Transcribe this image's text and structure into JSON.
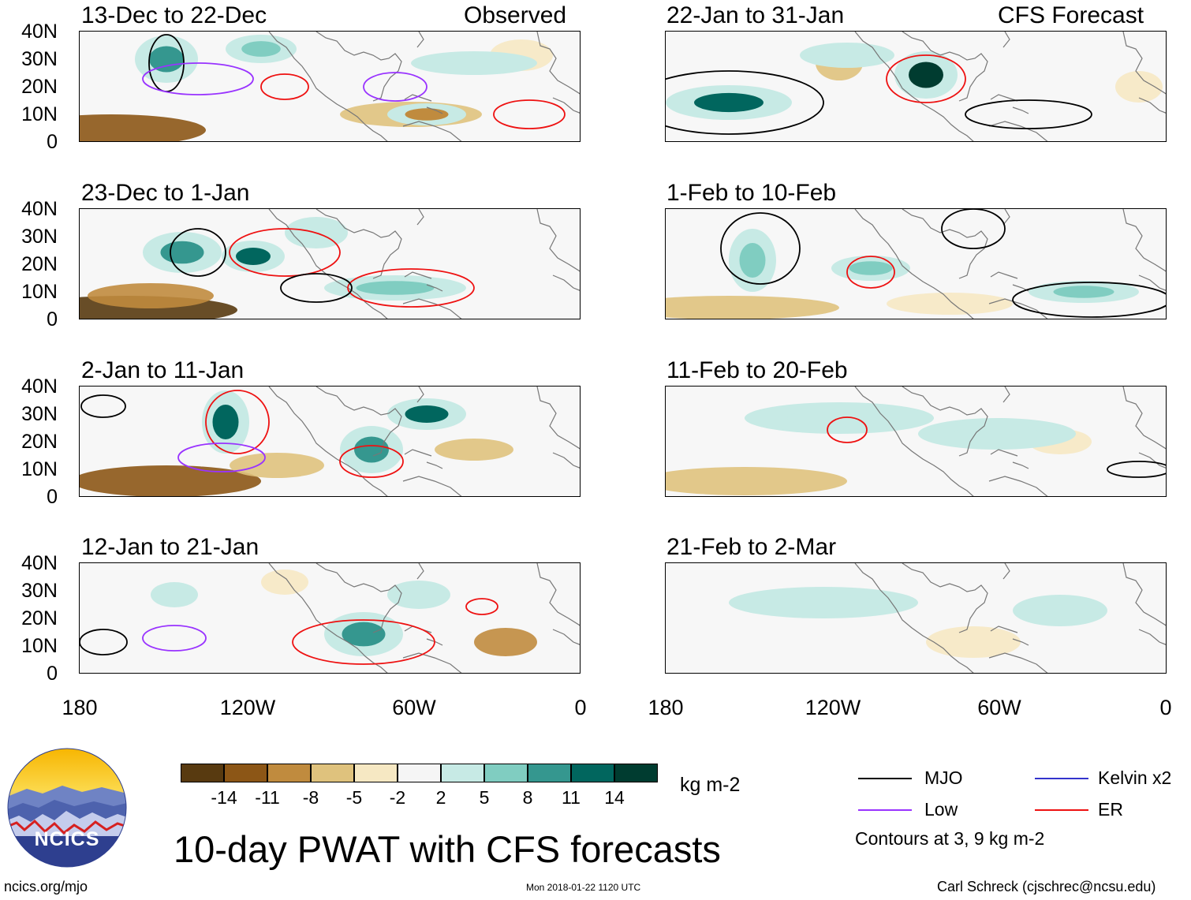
{
  "panels": [
    {
      "title": "13-Dec to 22-Dec",
      "label": "Observed"
    },
    {
      "title": "23-Dec to 1-Jan",
      "label": ""
    },
    {
      "title": "2-Jan to 11-Jan",
      "label": ""
    },
    {
      "title": "12-Jan to 21-Jan",
      "label": ""
    },
    {
      "title": "22-Jan to 31-Jan",
      "label": "CFS Forecast"
    },
    {
      "title": "1-Feb to 10-Feb",
      "label": ""
    },
    {
      "title": "11-Feb to 20-Feb",
      "label": ""
    },
    {
      "title": "21-Feb to 2-Mar",
      "label": ""
    }
  ],
  "axes": {
    "y_ticks": [
      "40N",
      "30N",
      "20N",
      "10N",
      "0"
    ],
    "x_ticks": [
      "180",
      "120W",
      "60W",
      "0"
    ]
  },
  "colorbar": {
    "labels": [
      "-14",
      "-11",
      "-8",
      "-5",
      "-2",
      "2",
      "5",
      "8",
      "11",
      "14"
    ],
    "colors": [
      "#583a10",
      "#8c5616",
      "#c08b3e",
      "#dfc27d",
      "#f6e8c3",
      "#f5f5f5",
      "#c7eae5",
      "#80cdc1",
      "#35978f",
      "#01665e",
      "#003c30"
    ],
    "units": "kg m-2"
  },
  "legend": {
    "items": [
      {
        "label": "MJO",
        "color": "#000000"
      },
      {
        "label": "Kelvin x2",
        "color": "#3333cc"
      },
      {
        "label": "Low",
        "color": "#9933ff"
      },
      {
        "label": "ER",
        "color": "#ee1111"
      }
    ],
    "note": "Contours at 3, 9 kg m-2"
  },
  "logo": {
    "text": "NCICS"
  },
  "footer": {
    "title": "10-day PWAT with CFS forecasts",
    "url": "ncics.org/mjo",
    "timestamp": "Mon 2018-01-22 1120 UTC",
    "credit": "Carl Schreck (cjschrec@ncsu.edu)"
  }
}
